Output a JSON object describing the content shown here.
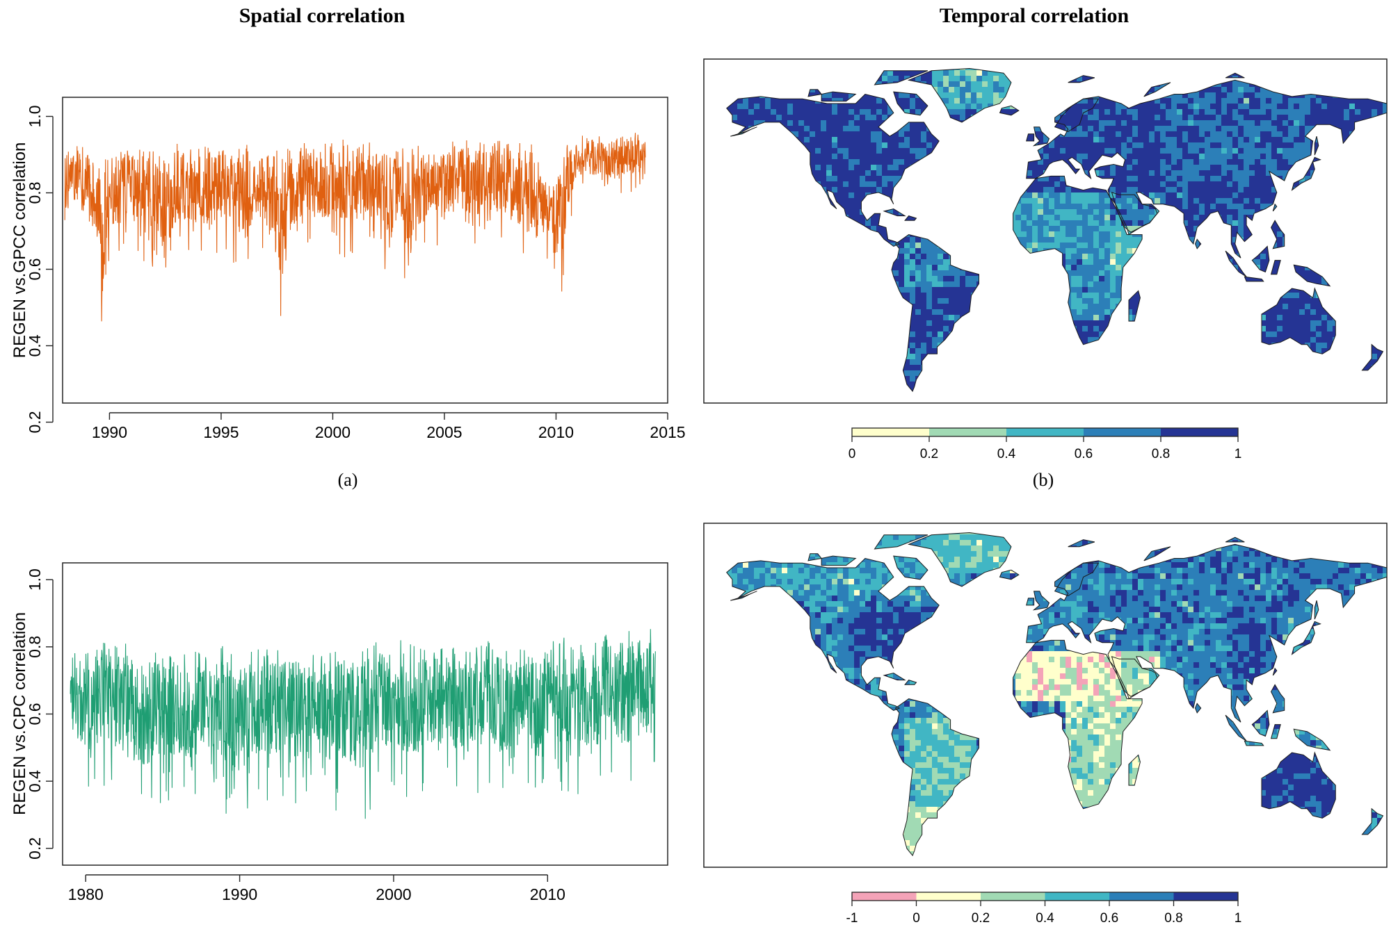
{
  "headings": {
    "left": "Spatial correlation",
    "right": "Temporal correlation"
  },
  "captions": {
    "a": "(a)",
    "b": "(b)"
  },
  "colors": {
    "gpcc_series": "#e06010",
    "cpc_series": "#1f9e73",
    "ocean": "#ffffff",
    "coastline": "#1a1a1a"
  },
  "chart_data": [
    {
      "id": "a",
      "type": "line",
      "title": "",
      "xlabel": "",
      "ylabel": "REGEN vs.GPCC  correlation",
      "xlim": [
        1987.9,
        2015.0
      ],
      "ylim": [
        0.25,
        1.05
      ],
      "xticks": [
        "1990",
        "1995",
        "2000",
        "2005",
        "2010",
        "2015"
      ],
      "yticks": [
        "0.2",
        "0.4",
        "0.6",
        "0.8",
        "1.0"
      ],
      "series": [
        {
          "color": "#e06010",
          "x": [
            1988.0,
            1988.5,
            1989.0,
            1989.5,
            1989.6,
            1990.0,
            1990.5,
            1991.0,
            1991.5,
            1992.0,
            1992.5,
            1993.0,
            1993.5,
            1994.0,
            1994.5,
            1995.0,
            1995.5,
            1996.0,
            1996.5,
            1997.0,
            1997.5,
            1997.7,
            1998.0,
            1998.5,
            1999.0,
            1999.5,
            2000.0,
            2000.5,
            2001.0,
            2001.5,
            2002.0,
            2002.5,
            2003.0,
            2003.5,
            2004.0,
            2004.5,
            2005.0,
            2005.5,
            2006.0,
            2006.5,
            2007.0,
            2007.5,
            2008.0,
            2008.5,
            2009.0,
            2009.3,
            2009.6,
            2010.0,
            2010.3,
            2010.5,
            2011.0,
            2011.5,
            2012.0,
            2012.5,
            2013.0,
            2013.5,
            2014.0
          ],
          "upper": [
            0.92,
            0.93,
            0.92,
            0.9,
            0.88,
            0.91,
            0.92,
            0.93,
            0.92,
            0.91,
            0.92,
            0.93,
            0.92,
            0.92,
            0.93,
            0.92,
            0.92,
            0.93,
            0.92,
            0.93,
            0.92,
            0.9,
            0.92,
            0.93,
            0.93,
            0.94,
            0.94,
            0.94,
            0.93,
            0.94,
            0.93,
            0.94,
            0.93,
            0.93,
            0.93,
            0.94,
            0.93,
            0.94,
            0.94,
            0.94,
            0.93,
            0.94,
            0.93,
            0.94,
            0.93,
            0.89,
            0.87,
            0.85,
            0.9,
            0.94,
            0.95,
            0.95,
            0.95,
            0.95,
            0.96,
            0.96,
            0.95
          ],
          "lower": [
            0.68,
            0.7,
            0.66,
            0.55,
            0.32,
            0.62,
            0.63,
            0.64,
            0.6,
            0.58,
            0.55,
            0.62,
            0.64,
            0.63,
            0.6,
            0.64,
            0.62,
            0.58,
            0.64,
            0.62,
            0.5,
            0.41,
            0.6,
            0.62,
            0.64,
            0.64,
            0.65,
            0.63,
            0.64,
            0.66,
            0.62,
            0.58,
            0.6,
            0.5,
            0.62,
            0.66,
            0.64,
            0.67,
            0.66,
            0.65,
            0.63,
            0.66,
            0.63,
            0.58,
            0.56,
            0.59,
            0.62,
            0.58,
            0.49,
            0.68,
            0.8,
            0.8,
            0.79,
            0.79,
            0.8,
            0.8,
            0.8
          ]
        }
      ]
    },
    {
      "id": "c",
      "type": "line",
      "title": "",
      "xlabel": "",
      "ylabel": "REGEN vs.CPC correlation",
      "xlim": [
        1978.5,
        2017.8
      ],
      "ylim": [
        0.15,
        1.05
      ],
      "xticks": [
        "1980",
        "1990",
        "2000",
        "2010"
      ],
      "yticks": [
        "0.2",
        "0.4",
        "0.6",
        "0.8",
        "1.0"
      ],
      "series": [
        {
          "color": "#1f9e73",
          "x": [
            1979.0,
            1980.0,
            1981.0,
            1982.0,
            1983.0,
            1984.0,
            1985.0,
            1986.0,
            1987.0,
            1988.0,
            1989.0,
            1990.0,
            1991.0,
            1992.0,
            1993.0,
            1994.0,
            1995.0,
            1996.0,
            1997.0,
            1998.0,
            1999.0,
            2000.0,
            2001.0,
            2002.0,
            2003.0,
            2004.0,
            2005.0,
            2006.0,
            2007.0,
            2008.0,
            2009.0,
            2010.0,
            2011.0,
            2012.0,
            2013.0,
            2014.0,
            2015.0,
            2016.0,
            2017.0
          ],
          "upper": [
            0.8,
            0.78,
            0.82,
            0.84,
            0.8,
            0.78,
            0.82,
            0.8,
            0.78,
            0.82,
            0.8,
            0.78,
            0.8,
            0.81,
            0.79,
            0.8,
            0.78,
            0.79,
            0.8,
            0.79,
            0.82,
            0.83,
            0.81,
            0.8,
            0.8,
            0.81,
            0.8,
            0.82,
            0.8,
            0.81,
            0.8,
            0.82,
            0.83,
            0.84,
            0.83,
            0.84,
            0.85,
            0.86,
            0.85
          ],
          "lower": [
            0.4,
            0.36,
            0.38,
            0.34,
            0.26,
            0.3,
            0.33,
            0.31,
            0.33,
            0.35,
            0.3,
            0.24,
            0.34,
            0.33,
            0.35,
            0.31,
            0.34,
            0.3,
            0.32,
            0.26,
            0.35,
            0.37,
            0.33,
            0.35,
            0.34,
            0.36,
            0.35,
            0.37,
            0.34,
            0.36,
            0.35,
            0.38,
            0.37,
            0.36,
            0.36,
            0.37,
            0.35,
            0.38,
            0.4
          ]
        }
      ]
    },
    {
      "id": "b",
      "type": "heatmap",
      "colorbar": {
        "ticks": [
          "0",
          "0.2",
          "0.4",
          "0.6",
          "0.8",
          "1"
        ],
        "colors": [
          "#ffffcc",
          "#a1dab4",
          "#41b6c4",
          "#2c7fb8",
          "#253494"
        ]
      }
    },
    {
      "id": "d",
      "type": "heatmap",
      "colorbar": {
        "ticks": [
          "-1",
          "0",
          "0.2",
          "0.4",
          "0.6",
          "0.8",
          "1"
        ],
        "colors": [
          "#f4a3b8",
          "#ffffcc",
          "#a1dab4",
          "#41b6c4",
          "#2c7fb8",
          "#253494"
        ]
      }
    }
  ]
}
